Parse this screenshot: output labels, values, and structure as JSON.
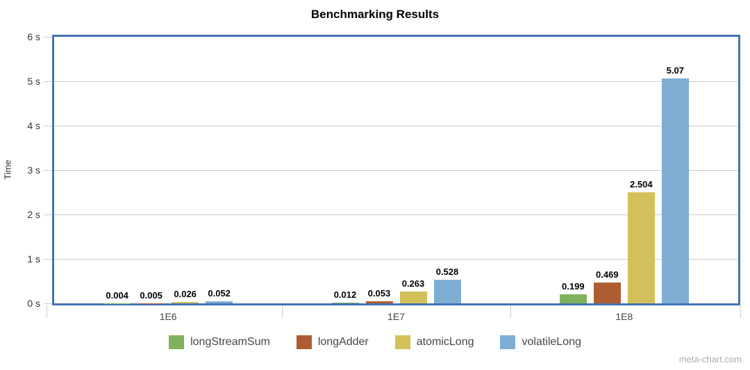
{
  "title": "Benchmarking Results",
  "watermark": "meta-chart.com",
  "chart_data": {
    "type": "bar",
    "title": "Benchmarking Results",
    "xlabel": "",
    "ylabel": "Time",
    "categories": [
      "1E6",
      "1E7",
      "1E8"
    ],
    "series": [
      {
        "name": "longStreamSum",
        "color": "#7FB25B",
        "values": [
          0.004,
          0.012,
          0.199
        ],
        "labels": [
          "0.004",
          "0.012",
          "0.199"
        ]
      },
      {
        "name": "longAdder",
        "color": "#AE5C32",
        "values": [
          0.005,
          0.053,
          0.469
        ],
        "labels": [
          "0.005",
          "0.053",
          "0.469"
        ]
      },
      {
        "name": "atomicLong",
        "color": "#D3C05A",
        "values": [
          0.026,
          0.263,
          2.504
        ],
        "labels": [
          "0.026",
          "0.263",
          "2.504"
        ]
      },
      {
        "name": "volatileLong",
        "color": "#7FAED4",
        "values": [
          0.052,
          0.528,
          5.07
        ],
        "labels": [
          "0.052",
          "0.528",
          "5.07"
        ]
      }
    ],
    "ylim": [
      0,
      6
    ],
    "yticks": [
      "0 s",
      "1 s",
      "2 s",
      "3 s",
      "4 s",
      "5 s",
      "6 s"
    ],
    "grid": true,
    "legend_position": "bottom",
    "plot_border_color": "#4473B7",
    "grid_color": "#CCCCCC"
  }
}
